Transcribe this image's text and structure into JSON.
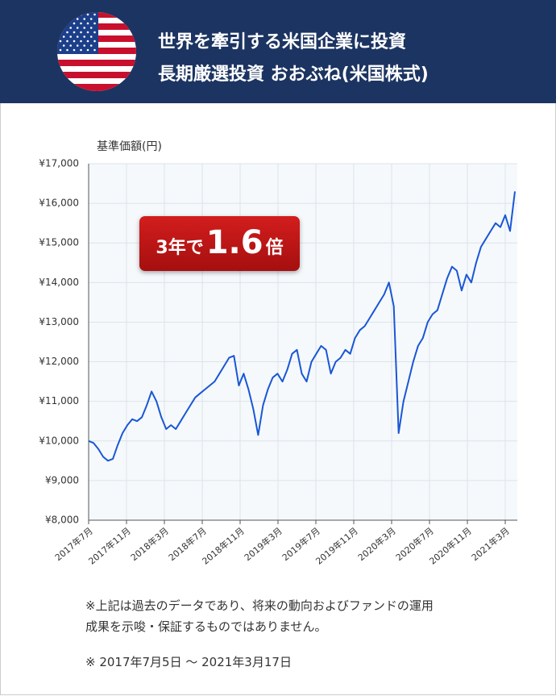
{
  "header": {
    "lines": [
      "世界を牽引する米国企業に投資",
      "長期厳選投資 おおぶね(米国株式)"
    ]
  },
  "chart_data": {
    "type": "line",
    "y_axis_title": "基準価額(円)",
    "annotation": [
      "3年で",
      "1.6",
      "倍"
    ],
    "xticks": [
      "2017年7月",
      "2017年11月",
      "2018年3月",
      "2018年7月",
      "2018年11月",
      "2019年3月",
      "2019年7月",
      "2019年11月",
      "2020年3月",
      "2020年7月",
      "2020年11月",
      "2021年3月"
    ],
    "series": [
      {
        "color": "#1a56d6",
        "values": [
          10000,
          9950,
          9800,
          9600,
          9500,
          9550,
          9900,
          10200,
          10400,
          10550,
          10500,
          10600,
          10900,
          11250,
          11000,
          10600,
          10300,
          10400,
          10300,
          10500,
          10700,
          10900,
          11100,
          11200,
          11300,
          11400,
          11500,
          11700,
          11900,
          12100,
          12150,
          11400,
          11700,
          11300,
          10800,
          10150,
          10900,
          11300,
          11600,
          11700,
          11500,
          11800,
          12200,
          12300,
          11700,
          11500,
          12000,
          12200,
          12400,
          12300,
          11700,
          12000,
          12100,
          12300,
          12200,
          12600,
          12800,
          12900,
          13100,
          13300,
          13500,
          13700,
          14000,
          13400,
          10200,
          11000,
          11500,
          12000,
          12400,
          12600,
          13000,
          13200,
          13300,
          13700,
          14100,
          14400,
          14300,
          13800,
          14200,
          14000,
          14500,
          14900,
          15100,
          15300,
          15500,
          15400,
          15700,
          15300,
          16300
        ]
      }
    ],
    "ylim": [
      8000,
      17000
    ],
    "yticks": [
      {
        "value": 8000,
        "label": "¥8,000"
      },
      {
        "value": 9000,
        "label": "¥9,000"
      },
      {
        "value": 10000,
        "label": "¥10,000"
      },
      {
        "value": 11000,
        "label": "¥11,000"
      },
      {
        "value": 12000,
        "label": "¥12,000"
      },
      {
        "value": 13000,
        "label": "¥13,000"
      },
      {
        "value": 14000,
        "label": "¥14,000"
      },
      {
        "value": 15000,
        "label": "¥15,000"
      },
      {
        "value": 16000,
        "label": "¥16,000"
      },
      {
        "value": 17000,
        "label": "¥17,000"
      }
    ],
    "grid": true
  },
  "notes": [
    "※上記は過去のデータであり、将来の動向およびファンドの運用",
    "成果を示唆・保証するものではありません。",
    "※ 2017年7月5日 〜 2021年3月17日"
  ]
}
